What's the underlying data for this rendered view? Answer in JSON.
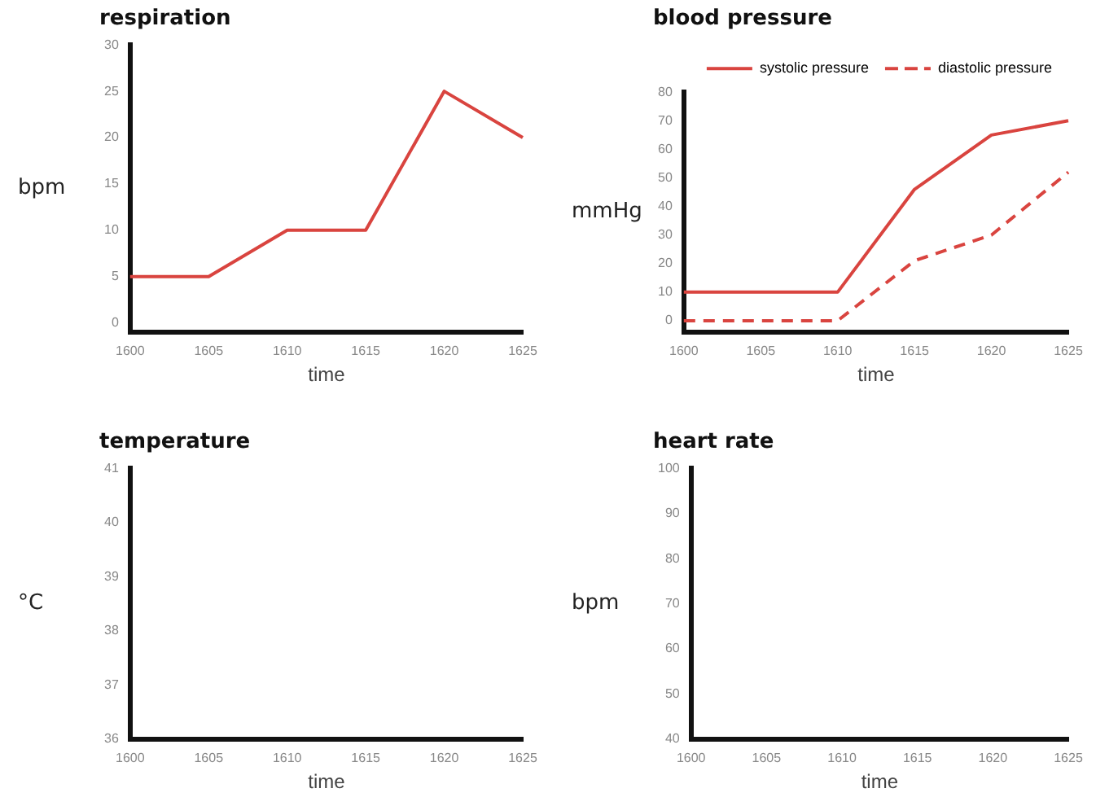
{
  "chart_data": [
    {
      "type": "line",
      "title": "respiration",
      "xlabel": "time",
      "ylabel": "bpm",
      "categories": [
        "1600",
        "1605",
        "1610",
        "1615",
        "1620",
        "1625"
      ],
      "series": [
        {
          "color": "#d9443f",
          "values": [
            5,
            5,
            10,
            10,
            25,
            20
          ]
        }
      ],
      "ylim": [
        -1,
        30
      ],
      "yticks": [
        0,
        5,
        10,
        15,
        20,
        25,
        30
      ],
      "grid": false,
      "legend": false,
      "marker": "none",
      "line_style": "solid"
    },
    {
      "type": "line",
      "title": "blood pressure",
      "xlabel": "time",
      "ylabel": "mmHg",
      "categories": [
        "1600",
        "1605",
        "1610",
        "1615",
        "1620",
        "1625"
      ],
      "series": [
        {
          "name": "systolic pressure",
          "color": "#d9443f",
          "values": [
            10,
            10,
            10,
            46,
            65,
            70
          ],
          "line_style": "solid"
        },
        {
          "name": "diastolic pressure",
          "color": "#d9443f",
          "values": [
            0,
            0,
            0,
            21,
            30,
            52
          ],
          "line_style": "dashed"
        }
      ],
      "ylim": [
        -4,
        80
      ],
      "yticks": [
        0,
        10,
        20,
        30,
        40,
        50,
        60,
        70,
        80
      ],
      "grid": false,
      "legend": "top right",
      "marker": "none"
    },
    {
      "type": "line",
      "title": "temperature",
      "xlabel": "time",
      "ylabel": "°C",
      "categories": [
        "1600",
        "1605",
        "1610",
        "1615",
        "1620",
        "1625"
      ],
      "series": [
        {
          "values": [
            null,
            null,
            null,
            null,
            null,
            null
          ]
        }
      ],
      "ylim": [
        36,
        41
      ],
      "yticks": [
        36,
        37,
        38,
        39,
        40,
        41
      ],
      "grid": false,
      "legend": false,
      "marker": "none"
    },
    {
      "type": "line",
      "title": "heart rate",
      "xlabel": "time",
      "ylabel": "bpm",
      "categories": [
        "1600",
        "1605",
        "1610",
        "1615",
        "1620",
        "1625"
      ],
      "series": [
        {
          "values": [
            null,
            null,
            null,
            null,
            null,
            null
          ]
        }
      ],
      "ylim": [
        40,
        100
      ],
      "yticks": [
        40,
        50,
        60,
        70,
        80,
        90,
        100
      ],
      "grid": false,
      "legend": false,
      "marker": "none"
    }
  ]
}
